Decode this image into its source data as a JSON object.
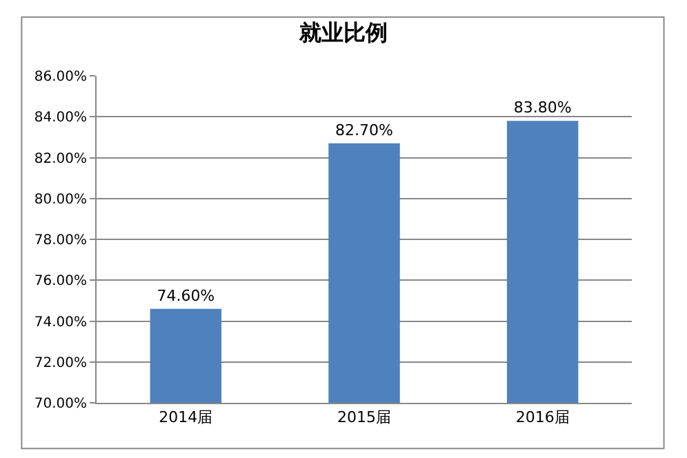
{
  "chart_data": {
    "type": "bar",
    "title": "就业比例",
    "categories": [
      "2014届",
      "2015届",
      "2016届"
    ],
    "values": [
      74.6,
      82.7,
      83.8
    ],
    "value_labels": [
      "74.60%",
      "82.70%",
      "83.80%"
    ],
    "color": "#4f81bd",
    "ylim": [
      70,
      86
    ],
    "yticks": [
      {
        "value": 70,
        "label": "70.00%"
      },
      {
        "value": 72,
        "label": "72.00%"
      },
      {
        "value": 74,
        "label": "74.00%"
      },
      {
        "value": 76,
        "label": "76.00%"
      },
      {
        "value": 78,
        "label": "78.00%"
      },
      {
        "value": 80,
        "label": "80.00%"
      },
      {
        "value": 82,
        "label": "82.00%"
      },
      {
        "value": 84,
        "label": "84.00%"
      },
      {
        "value": 86,
        "label": "86.00%"
      }
    ],
    "grid": "y"
  }
}
